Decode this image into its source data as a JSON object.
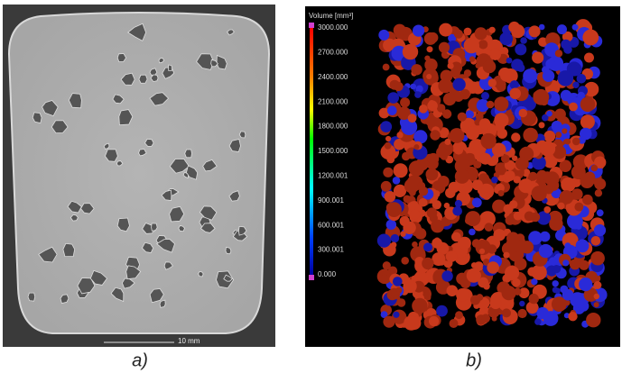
{
  "panel_a": {
    "scale_bar": "10 mm",
    "caption": "a)"
  },
  "panel_b": {
    "colorbar_title": "Volume [mm³]",
    "colorbar_labels": [
      "3000.000",
      "2700.000",
      "2400.000",
      "2100.000",
      "1800.000",
      "1500.000",
      "1200.001",
      "900.001",
      "600.001",
      "300.001",
      "0.000"
    ],
    "caption": "b)"
  }
}
